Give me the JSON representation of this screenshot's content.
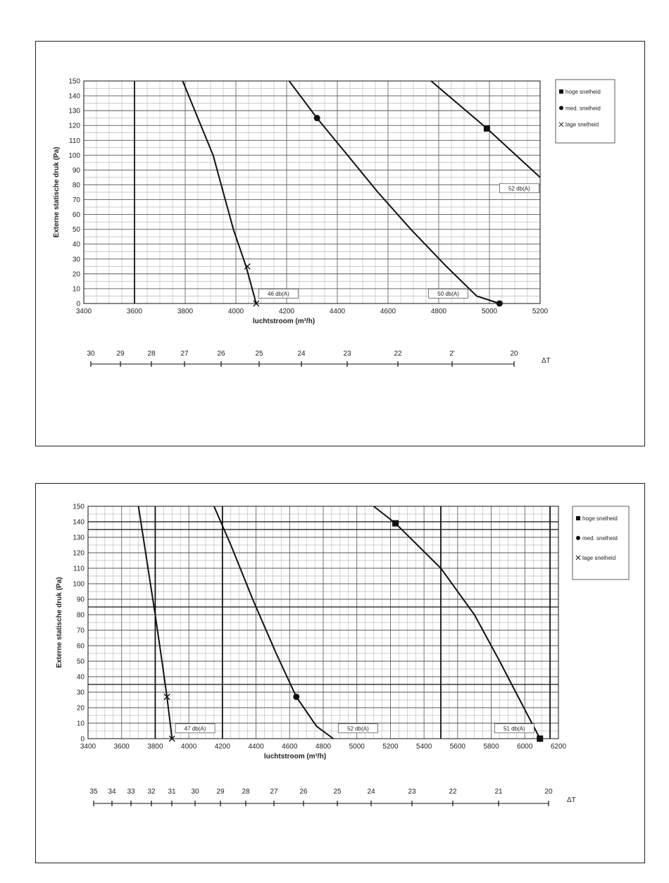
{
  "chart_data": [
    {
      "type": "line",
      "xlabel": "luchtstroom (m³/h)",
      "ylabel": "Externe statische druk (Pa)",
      "xlim": [
        3400,
        5200
      ],
      "ylim": [
        0,
        150
      ],
      "x_ticks": [
        "3400",
        "3600",
        "3800",
        "4000",
        "4200",
        "4400",
        "4600",
        "4800",
        "5000",
        "5200"
      ],
      "y_ticks": [
        "0",
        "10",
        "20",
        "30",
        "40",
        "50",
        "60",
        "70",
        "80",
        "90",
        "100",
        "110",
        "120",
        "130",
        "140",
        "150"
      ],
      "grid": true,
      "series": [
        {
          "name": "lage snelheid",
          "marker": "x",
          "points": [
            [
              3790,
              150
            ],
            [
              3850,
              125
            ],
            [
              3910,
              100
            ],
            [
              3950,
              75
            ],
            [
              3990,
              50
            ],
            [
              4040,
              25
            ],
            [
              4080,
              0
            ]
          ],
          "marker_points": [
            [
              4045,
              25
            ],
            [
              4080,
              0
            ]
          ]
        },
        {
          "name": "med. snelheid",
          "marker": "circle",
          "points": [
            [
              4210,
              150
            ],
            [
              4320,
              125
            ],
            [
              4440,
              100
            ],
            [
              4560,
              75
            ],
            [
              4690,
              50
            ],
            [
              4830,
              25
            ],
            [
              4950,
              5
            ],
            [
              5040,
              0
            ]
          ],
          "marker_points": [
            [
              4320,
              125
            ],
            [
              5040,
              0
            ]
          ]
        },
        {
          "name": "hoge snelheid",
          "marker": "square",
          "points": [
            [
              4770,
              150
            ],
            [
              4990,
              118
            ],
            [
              5200,
              85
            ]
          ],
          "marker_points": [
            [
              4990,
              118
            ]
          ]
        }
      ],
      "annotations": [
        {
          "text": "46 db(A)",
          "x": 4090,
          "y": 6
        },
        {
          "text": "50 db(A)",
          "x": 4760,
          "y": 6
        },
        {
          "text": "52 db(A)",
          "x": 5040,
          "y": 77
        }
      ],
      "legend": {
        "position": "right",
        "entries": [
          "hoge snelheid",
          "med. snelheid",
          "lage snelheid"
        ]
      },
      "delta_scale": {
        "label": "ΔT",
        "labels": [
          "30",
          "29",
          "28",
          "27",
          "26",
          "25",
          "24",
          "23",
          "22",
          "2'",
          "20"
        ]
      }
    },
    {
      "type": "line",
      "xlabel": "luchtstroom (m³/h)",
      "ylabel": "Externe statische druk (Pa)",
      "xlim": [
        3400,
        6200
      ],
      "ylim": [
        0,
        150
      ],
      "x_ticks": [
        "3400",
        "3600",
        "3800",
        "4000",
        "4200",
        "4400",
        "4600",
        "4800",
        "5000",
        "5200",
        "5400",
        "5600",
        "5800",
        "6000",
        "6200"
      ],
      "y_ticks": [
        "0",
        "10",
        "20",
        "30",
        "40",
        "50",
        "60",
        "70",
        "80",
        "90",
        "100",
        "110",
        "120",
        "130",
        "140",
        "150"
      ],
      "grid": true,
      "series": [
        {
          "name": "lage snelheid",
          "marker": "x",
          "points": [
            [
              3700,
              150
            ],
            [
              3750,
              115
            ],
            [
              3800,
              80
            ],
            [
              3840,
              50
            ],
            [
              3870,
              27
            ],
            [
              3900,
              0
            ]
          ],
          "marker_points": [
            [
              3870,
              27
            ],
            [
              3900,
              0
            ]
          ]
        },
        {
          "name": "med. snelheid",
          "marker": "circle",
          "points": [
            [
              4150,
              150
            ],
            [
              4250,
              125
            ],
            [
              4380,
              90
            ],
            [
              4520,
              55
            ],
            [
              4640,
              27
            ],
            [
              4760,
              8
            ],
            [
              4860,
              0
            ]
          ],
          "marker_points": [
            [
              4640,
              27
            ]
          ]
        },
        {
          "name": "hoge snelheid",
          "marker": "square",
          "points": [
            [
              5100,
              150
            ],
            [
              5230,
              139
            ],
            [
              5500,
              110
            ],
            [
              5700,
              80
            ],
            [
              5850,
              50
            ],
            [
              5970,
              25
            ],
            [
              6090,
              0
            ]
          ],
          "marker_points": [
            [
              5230,
              139
            ],
            [
              6090,
              0
            ]
          ]
        }
      ],
      "annotations": [
        {
          "text": "47 db(A)",
          "x": 3920,
          "y": 6
        },
        {
          "text": "52 db(A)",
          "x": 4890,
          "y": 6
        },
        {
          "text": "51 db(A)",
          "x": 5820,
          "y": 6
        }
      ],
      "legend": {
        "position": "right",
        "entries": [
          "hoge snelheid",
          "med. snelheid",
          "lage snelheid"
        ]
      },
      "delta_scale": {
        "label": "ΔT",
        "labels": [
          "35",
          "34",
          "33",
          "32",
          "31",
          "30",
          "29",
          "28",
          "27",
          "26",
          "25",
          "24",
          "23",
          "22",
          "21",
          "20"
        ]
      }
    }
  ]
}
